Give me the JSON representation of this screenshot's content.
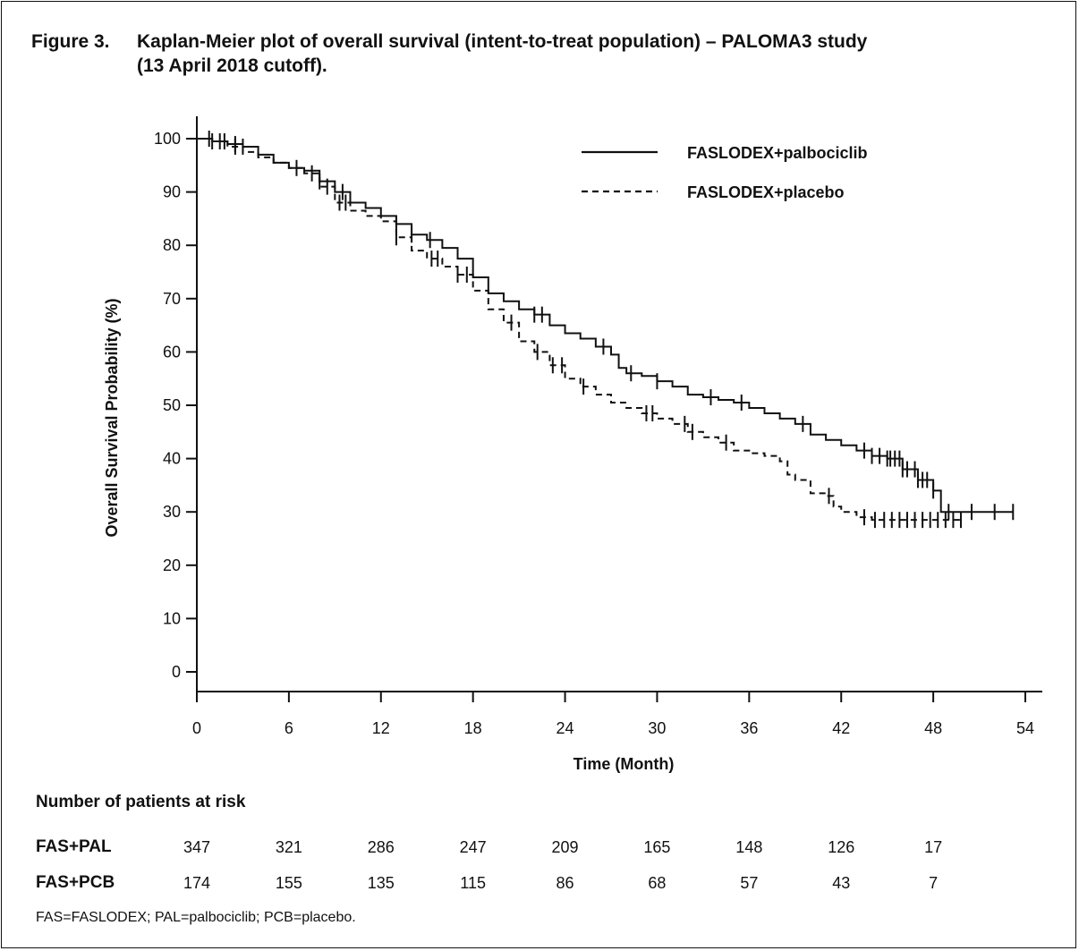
{
  "title": {
    "label": "Figure 3.",
    "line1": "Kaplan-Meier plot of overall survival (intent-to-treat population) – PALOMA3 study",
    "line2": "(13 April 2018 cutoff)."
  },
  "chart_data": {
    "type": "line",
    "style": "kaplan-meier step curves with censor tick marks",
    "xlabel": "Time (Month)",
    "ylabel": "Overall Survival Probability (%)",
    "xlim": [
      0,
      54
    ],
    "ylim": [
      0,
      100
    ],
    "x_ticks": [
      0,
      6,
      12,
      18,
      24,
      30,
      36,
      42,
      48,
      54
    ],
    "y_ticks": [
      0,
      10,
      20,
      30,
      40,
      50,
      60,
      70,
      80,
      90,
      100
    ],
    "grid": false,
    "legend_position": "top-right",
    "series": [
      {
        "name": "FASLODEX+palbociclib",
        "line_style": "solid",
        "x": [
          0,
          1,
          2,
          3,
          4,
          5,
          6,
          7,
          8,
          9,
          10,
          11,
          12,
          13,
          14,
          15,
          16,
          17,
          18,
          19,
          20,
          21,
          22,
          23,
          24,
          25,
          26,
          27,
          27.5,
          28,
          29,
          30,
          31,
          32,
          33,
          34,
          35,
          36,
          37,
          38,
          39,
          40,
          41,
          42,
          43,
          44,
          45,
          46,
          47,
          48,
          48.5,
          50,
          53.2
        ],
        "y": [
          100,
          99.5,
          99,
          98.5,
          97,
          95.5,
          94.5,
          94,
          92,
          90,
          88,
          87,
          85.5,
          84,
          82,
          81,
          79.5,
          77.5,
          74,
          71,
          69.5,
          68,
          67,
          65,
          63.5,
          62.5,
          61,
          59.5,
          57,
          56,
          55.5,
          54.5,
          53.5,
          52,
          51.5,
          51,
          50.5,
          49.5,
          48.5,
          47.5,
          46.5,
          44.5,
          43.5,
          42.5,
          41.5,
          40.5,
          40,
          38,
          36,
          34,
          30,
          30,
          30
        ],
        "censor_x": [
          0.8,
          1.5,
          2.5,
          3,
          6.5,
          8,
          9.5,
          13,
          14,
          15.2,
          22,
          22.5,
          26.5,
          28.3,
          30,
          33.5,
          35.5,
          39.5,
          43.5,
          44,
          44.5,
          45,
          45.2,
          45.5,
          45.8,
          46,
          46.3,
          46.8,
          47,
          47.3,
          47.6,
          48,
          49,
          50.5,
          52,
          53.2
        ]
      },
      {
        "name": "FASLODEX+placebo",
        "line_style": "dashed",
        "x": [
          0,
          1,
          2,
          3,
          4,
          5,
          6,
          7,
          8,
          9,
          10,
          11,
          12,
          13,
          14,
          15,
          16,
          17,
          18,
          19,
          20,
          21,
          22,
          23,
          24,
          25,
          26,
          27,
          28,
          29,
          30,
          31,
          32,
          33,
          34,
          35,
          36,
          37,
          38,
          38.5,
          39,
          40,
          41,
          41.5,
          42,
          43,
          44,
          50
        ],
        "y": [
          100,
          99.5,
          98.5,
          97.5,
          96.5,
          95.5,
          94.5,
          93.5,
          91,
          88,
          86.5,
          85.5,
          84.5,
          81.5,
          79,
          77.5,
          76,
          74.5,
          71.5,
          68,
          65.5,
          62,
          60,
          57.5,
          55,
          53.5,
          52,
          50.5,
          49.5,
          48.5,
          47.5,
          46.5,
          45,
          44,
          43,
          41.5,
          41,
          40.5,
          39.5,
          37,
          36,
          33.5,
          33,
          31,
          30,
          29,
          28.5,
          28.5
        ],
        "censor_x": [
          1,
          1.8,
          2.5,
          7.5,
          8.5,
          9.3,
          9.7,
          13,
          15.3,
          15.7,
          17,
          17.6,
          20.5,
          22.2,
          23.2,
          23.8,
          25.2,
          29.3,
          29.7,
          31.8,
          32.3,
          34.5,
          41.2,
          43.5,
          44.2,
          44.8,
          45.3,
          45.8,
          46.3,
          46.8,
          47.3,
          47.8,
          48.3,
          48.8,
          49.3,
          49.8
        ]
      }
    ]
  },
  "risk_table": {
    "title": "Number of patients at risk",
    "time_points": [
      0,
      6,
      12,
      18,
      24,
      30,
      36,
      42,
      48
    ],
    "rows": [
      {
        "label": "FAS+PAL",
        "values": [
          "347",
          "321",
          "286",
          "247",
          "209",
          "165",
          "148",
          "126",
          "17"
        ]
      },
      {
        "label": "FAS+PCB",
        "values": [
          "174",
          "155",
          "135",
          "115",
          "86",
          "68",
          "57",
          "43",
          "7"
        ]
      }
    ]
  },
  "footnote": "FAS=FASLODEX; PAL=palbociclib; PCB=placebo."
}
